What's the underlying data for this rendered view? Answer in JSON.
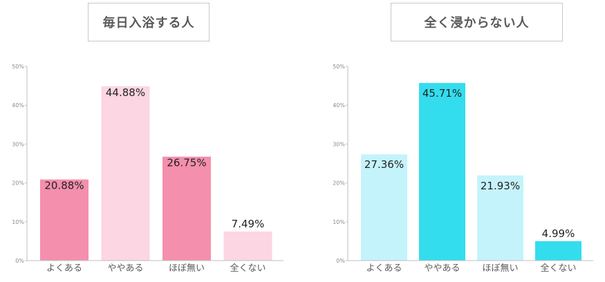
{
  "chart_data": [
    {
      "type": "bar",
      "title": "毎日入浴する人",
      "categories": [
        "よくある",
        "ややある",
        "ほぼ無い",
        "全くない"
      ],
      "values": [
        20.88,
        44.88,
        26.75,
        7.49
      ],
      "value_labels": [
        "20.88%",
        "44.88%",
        "26.75%",
        "7.49%"
      ],
      "bar_colors": [
        "#f48fad",
        "#fcd6e2",
        "#f48fad",
        "#fcd6e2"
      ],
      "ylim": [
        0,
        50
      ],
      "yticks": [
        "0%",
        "10%",
        "20%",
        "30%",
        "40%",
        "50%"
      ],
      "grid": false,
      "xlabel": "",
      "ylabel": ""
    },
    {
      "type": "bar",
      "title": "全く浸からない人",
      "categories": [
        "よくある",
        "ややある",
        "ほぼ無い",
        "全くない"
      ],
      "values": [
        27.36,
        45.71,
        21.93,
        4.99
      ],
      "value_labels": [
        "27.36%",
        "45.71%",
        "21.93%",
        "4.99%"
      ],
      "bar_colors": [
        "#c5f3fb",
        "#33ddee",
        "#c5f3fb",
        "#33ddee"
      ],
      "ylim": [
        0,
        50
      ],
      "yticks": [
        "0%",
        "10%",
        "20%",
        "30%",
        "40%",
        "50%"
      ],
      "grid": false,
      "xlabel": "",
      "ylabel": ""
    }
  ]
}
